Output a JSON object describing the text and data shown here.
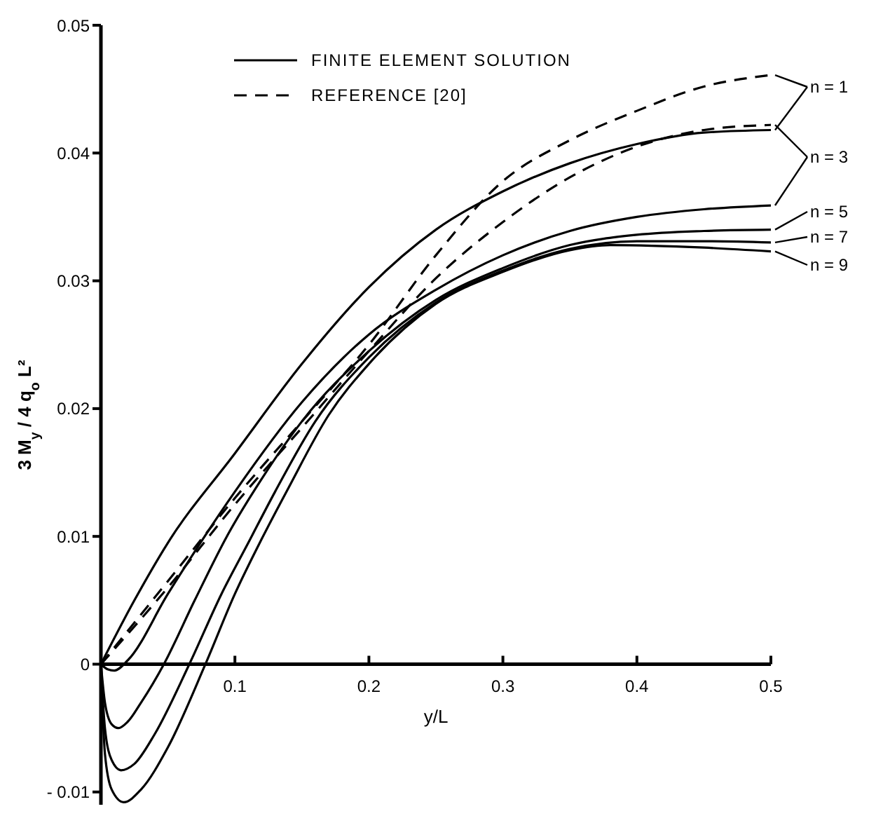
{
  "chart_data": {
    "type": "line",
    "xlabel": "y/L",
    "ylabel": "3 M$_{y}$ / 4 q$_{o}$ L²",
    "annotations": [
      "FINITE ELEMENT SOLUTION",
      "REFERENCE  [20]"
    ],
    "xlim": [
      0,
      0.5
    ],
    "xticks": [
      0.1,
      0.2,
      0.3,
      0.4,
      0.5
    ],
    "ylim": [
      -0.011,
      0.05
    ],
    "yticks": [
      {
        "value": -0.01,
        "label": "- 0.01"
      },
      {
        "value": 0,
        "label": "0"
      },
      0.01,
      0.02,
      0.03,
      0.04,
      0.05
    ],
    "grid": false,
    "marker": "none",
    "legend": "right",
    "series": [
      {
        "name": "n = 1",
        "color": "#000000",
        "line_style": "solid",
        "x": [
          0,
          0.025,
          0.05,
          0.1,
          0.15,
          0.2,
          0.25,
          0.3,
          0.35,
          0.4,
          0.45,
          0.5
        ],
        "values": [
          0,
          0.005,
          0.0095,
          0.0165,
          0.0235,
          0.0295,
          0.034,
          0.037,
          0.0392,
          0.0407,
          0.0416,
          0.0418
        ]
      },
      {
        "name": "n = 3",
        "color": "#000000",
        "line_style": "solid",
        "x": [
          0,
          0.005,
          0.01,
          0.02,
          0.05,
          0.1,
          0.15,
          0.2,
          0.25,
          0.3,
          0.35,
          0.4,
          0.45,
          0.5
        ],
        "values": [
          0,
          -0.0004,
          -0.0005,
          0.0003,
          0.0055,
          0.0135,
          0.0205,
          0.0258,
          0.0293,
          0.032,
          0.0339,
          0.035,
          0.0356,
          0.0359
        ]
      },
      {
        "name": "n = 5",
        "color": "#000000",
        "line_style": "solid",
        "x": [
          0,
          0.003,
          0.008,
          0.013,
          0.02,
          0.03,
          0.047,
          0.07,
          0.094,
          0.12,
          0.15,
          0.2,
          0.25,
          0.3,
          0.35,
          0.4,
          0.45,
          0.5
        ],
        "values": [
          0,
          -0.003,
          -0.0047,
          -0.005,
          -0.0045,
          -0.003,
          0,
          0.005,
          0.01,
          0.0145,
          0.019,
          0.0245,
          0.0285,
          0.031,
          0.0328,
          0.0336,
          0.0339,
          0.034
        ]
      },
      {
        "name": "n = 7",
        "color": "#000000",
        "line_style": "solid",
        "x": [
          0,
          0.003,
          0.008,
          0.015,
          0.025,
          0.04,
          0.066,
          0.09,
          0.11,
          0.13,
          0.16,
          0.2,
          0.25,
          0.3,
          0.35,
          0.4,
          0.45,
          0.5
        ],
        "values": [
          0,
          -0.005,
          -0.0075,
          -0.0083,
          -0.0078,
          -0.0055,
          0,
          0.0055,
          0.0095,
          0.0135,
          0.019,
          0.024,
          0.0283,
          0.0308,
          0.0325,
          0.0331,
          0.0331,
          0.033
        ]
      },
      {
        "name": "n = 9",
        "color": "#000000",
        "line_style": "solid",
        "x": [
          0,
          0.003,
          0.008,
          0.017,
          0.03,
          0.05,
          0.078,
          0.1,
          0.12,
          0.14,
          0.17,
          0.2,
          0.25,
          0.3,
          0.35,
          0.38,
          0.45,
          0.5
        ],
        "values": [
          0,
          -0.007,
          -0.0098,
          -0.0108,
          -0.0098,
          -0.0065,
          0,
          0.0055,
          0.0098,
          0.0138,
          0.0195,
          0.0235,
          0.0282,
          0.0307,
          0.0324,
          0.0328,
          0.0326,
          0.0323
        ]
      },
      {
        "color": "#000000",
        "line_style": "dashed",
        "x": [
          0,
          0.05,
          0.1,
          0.15,
          0.2,
          0.25,
          0.3,
          0.35,
          0.4,
          0.45,
          0.5
        ],
        "values": [
          0,
          0.0065,
          0.013,
          0.019,
          0.025,
          0.032,
          0.0378,
          0.041,
          0.0433,
          0.0452,
          0.0461
        ]
      },
      {
        "color": "#000000",
        "line_style": "dashed",
        "x": [
          0,
          0.05,
          0.1,
          0.15,
          0.2,
          0.25,
          0.3,
          0.35,
          0.4,
          0.45,
          0.5
        ],
        "values": [
          0,
          0.006,
          0.0125,
          0.0185,
          0.0245,
          0.0302,
          0.0346,
          0.0381,
          0.0405,
          0.0418,
          0.0422
        ]
      }
    ]
  }
}
